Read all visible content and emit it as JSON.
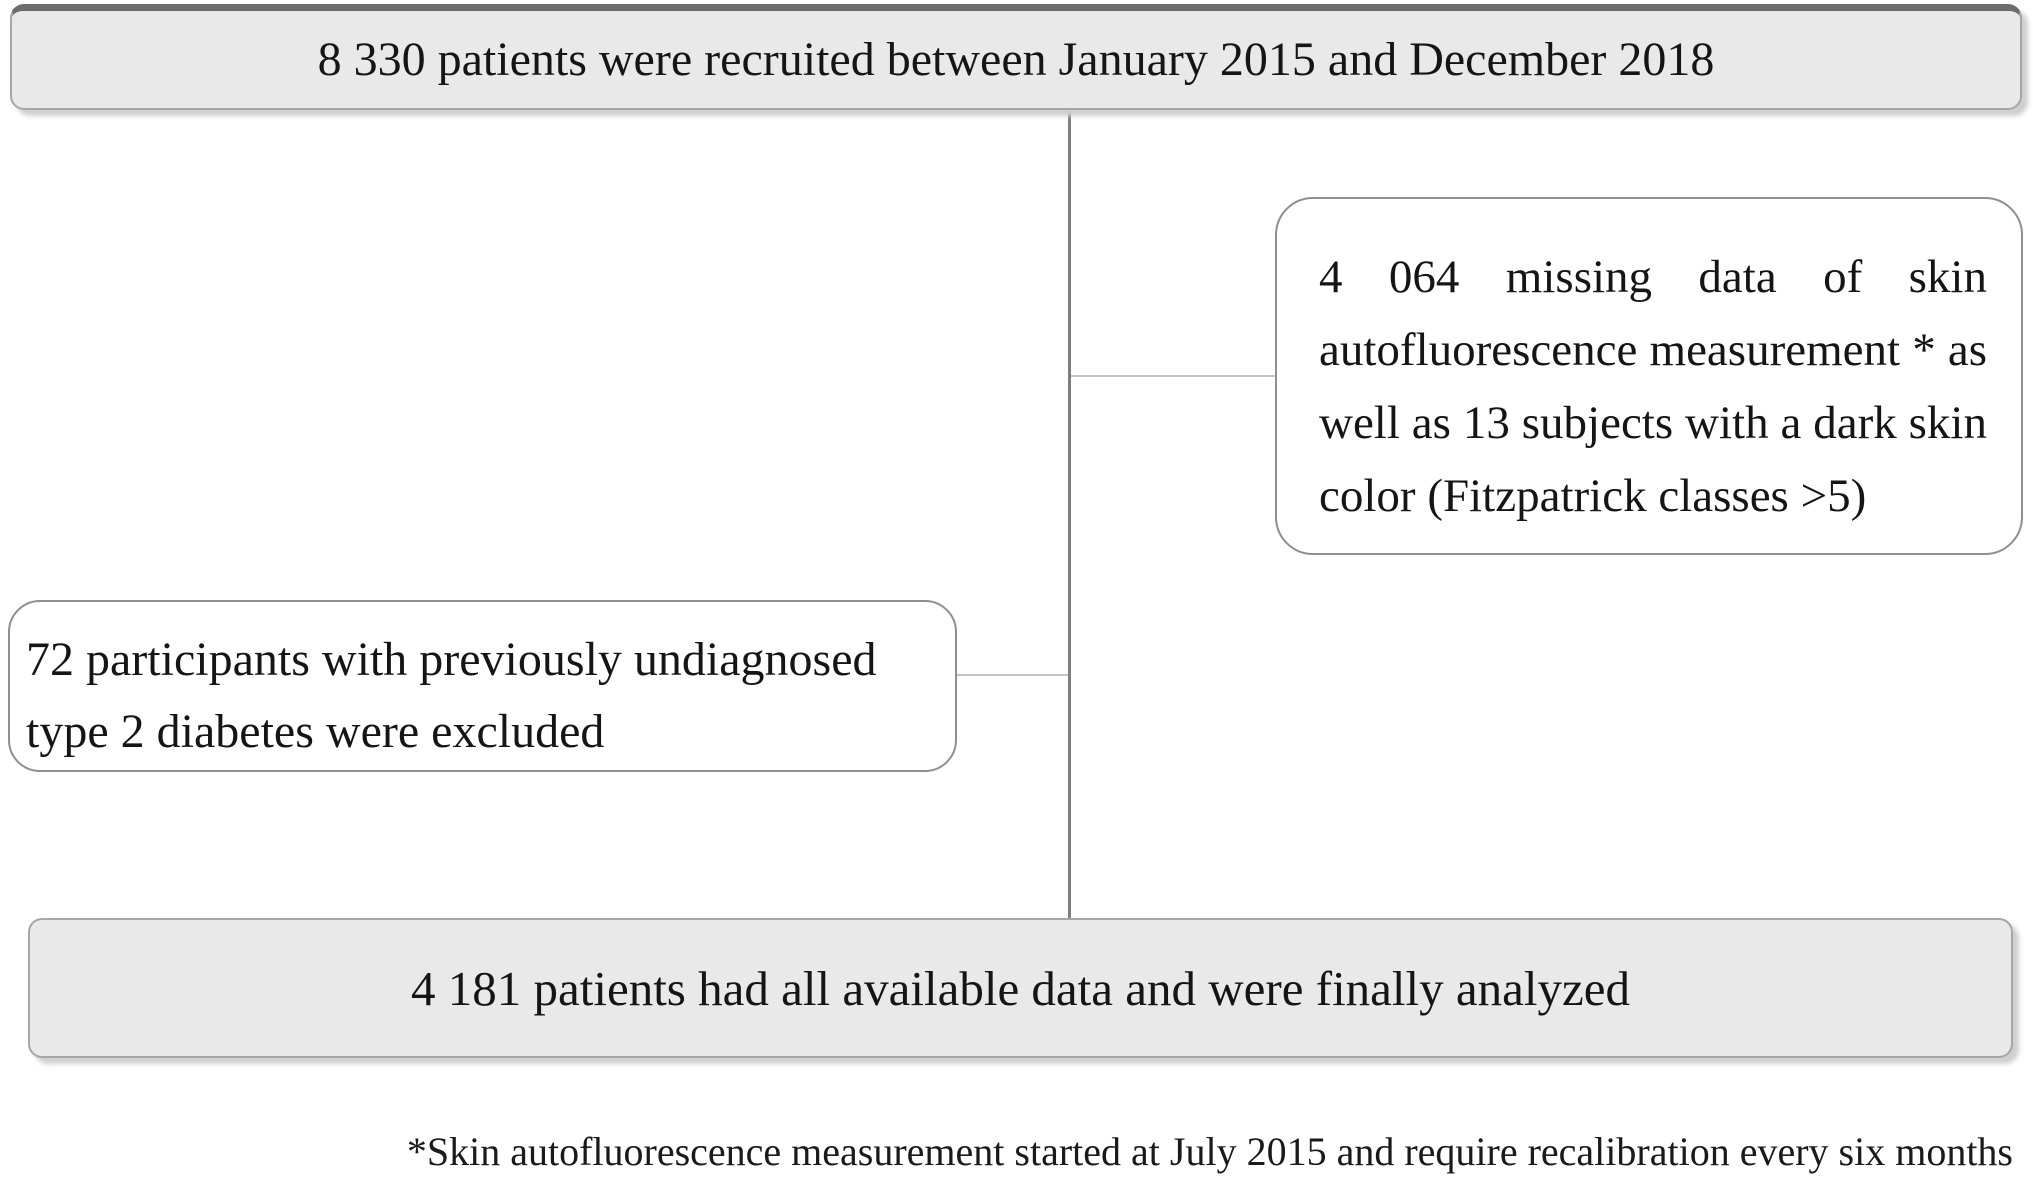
{
  "figure": {
    "type": "patient-flow-diagram",
    "boxes": {
      "recruited": {
        "count": "8 330",
        "text": "8 330 patients were recruited between January 2015 and December 2018"
      },
      "excluded_missing": {
        "count": "4 064",
        "text": "4 064 missing data of skin autofluorescence measurement * as well as 13 subjects with a dark skin color (Fitzpatrick classes >5)"
      },
      "excluded_undiagnosed": {
        "count": "72",
        "text": "72 participants with previously undiagnosed type 2 diabetes were excluded"
      },
      "analyzed": {
        "count": "4 181",
        "text": "4 181 patients had all available data and were finally analyzed"
      }
    },
    "footnote": "*Skin autofluorescence measurement started at July 2015 and require recalibration every six months",
    "colors": {
      "box_fill_gray": "#e9e9e9",
      "box_border_gray": "#a6a6a6",
      "box_border_dark_top": "#6d6d6d",
      "white_box_border": "#8f8f8f",
      "vertical_line": "#7e7e7e",
      "branch_line": "#c4c4c4",
      "text": "#151515",
      "background": "#ffffff"
    }
  }
}
